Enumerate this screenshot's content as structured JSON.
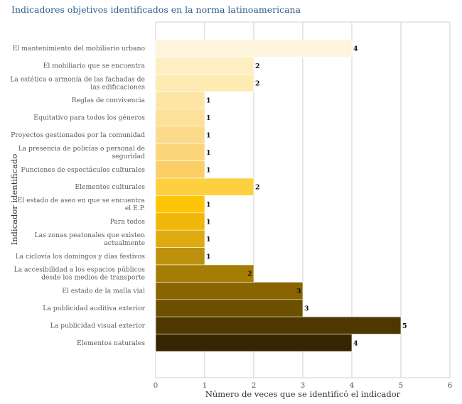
{
  "chart_data": {
    "type": "bar",
    "orientation": "horizontal",
    "title": "Indicadores objetivos identificados en la norma latinoamericana",
    "xlabel": "Número de veces que se identificó el indicador",
    "ylabel": "Indicador identificado",
    "xlim": [
      0,
      6
    ],
    "xticks": [
      "0",
      "1",
      "2",
      "3",
      "4",
      "5",
      "6"
    ],
    "grid": "vertical",
    "legend": "none",
    "data_labels": true,
    "categories": [
      [
        "El mantenimiento del mobiliario urbano"
      ],
      [
        "El mobiliario que se encuentra"
      ],
      [
        "La estética  o armonía de las fachadas de",
        "las edificaciones"
      ],
      [
        "Reglas de convivencia"
      ],
      [
        "Equitativo para todos los géneros"
      ],
      [
        "Proyectos gestionados por la comunidad"
      ],
      [
        "La presencia de policías o personal de",
        "seguridad"
      ],
      [
        "Funciones de espectáculos culturales"
      ],
      [
        "Elementos culturales"
      ],
      [
        "El estado de aseo en que se encuentra",
        "el E.P."
      ],
      [
        "Para todos"
      ],
      [
        "Las  zonas peatonales que existen",
        "actualmente"
      ],
      [
        "La ciclovía los domingos y días festivos"
      ],
      [
        "La accesibilidad a los espacios públicos",
        "desde los medios de  transporte"
      ],
      [
        "El estado de la malla vial"
      ],
      [
        "La publicidad auditiva exterior"
      ],
      [
        "La publicidad visual exterior"
      ],
      [
        "Elementos naturales"
      ]
    ],
    "values": [
      4,
      2,
      2,
      1,
      1,
      1,
      1,
      1,
      2,
      1,
      1,
      1,
      1,
      2,
      3,
      3,
      5,
      4
    ],
    "colors": [
      "#fff5dc",
      "#fdefc2",
      "#fdebb2",
      "#fde6a5",
      "#fde09a",
      "#fcd98b",
      "#fcd57b",
      "#fbcf66",
      "#fdd040",
      "#fdc506",
      "#f0b70a",
      "#deaa10",
      "#bd910c",
      "#a67d04",
      "#8a6400",
      "#6c5000",
      "#4e3800",
      "#352500"
    ]
  }
}
